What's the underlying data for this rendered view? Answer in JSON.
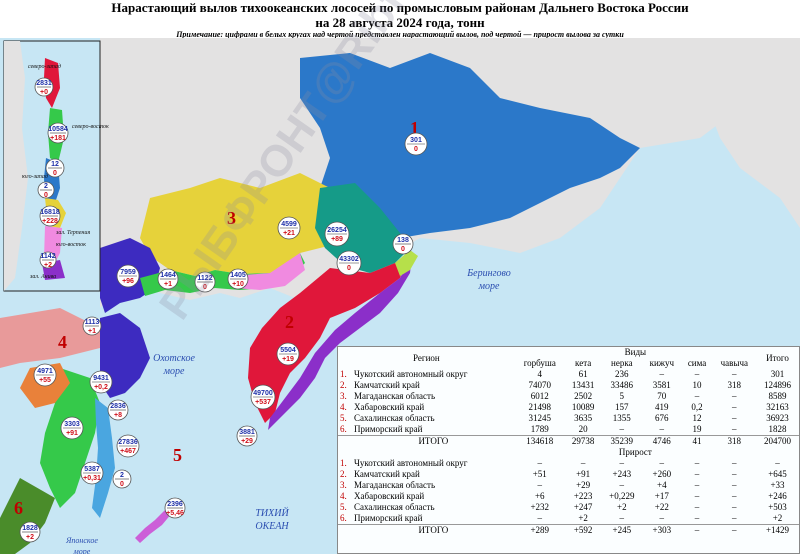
{
  "header": {
    "title_line1": "Нарастающий вылов тихоокеанских лососей по промысловым районам Дальнего Востока России",
    "title_line2": "на 28 августа 2024 года, тонн",
    "note": "Примечание: цифрами в белых кругах над чертой представлен нарастающий вылов, под чертой — прирост вылова за сутки"
  },
  "watermark": "РЫБФРОНТ@Ribfront",
  "colors": {
    "sea": "#c7e6f4",
    "land_gray": "#e3e2e2",
    "chukotka": "#2b78c9",
    "kamchatka": "#e0173a",
    "magadan": "#e6d23a",
    "khabarovsk": "#3d2bc0",
    "sakhalin": "#4aa6e0",
    "primorye": "#4a8c2a",
    "kuril": "#cc5fd8",
    "region_num": "#c00000"
  },
  "map": {
    "region_numbers": [
      "1",
      "2",
      "3",
      "4",
      "5",
      "6"
    ],
    "sea_labels": {
      "bering": [
        "Берингово",
        "море"
      ],
      "okhotsk": [
        "Охотское",
        "море"
      ],
      "pacific": [
        "ТИХИЙ",
        "ОКЕАН"
      ],
      "japan": [
        "Японское",
        "море"
      ]
    },
    "main_circles": [
      {
        "top": "301",
        "bottom": "0"
      },
      {
        "top": "4599",
        "bottom": "+21"
      },
      {
        "top": "26254",
        "bottom": "+89"
      },
      {
        "top": "43302",
        "bottom": "0"
      },
      {
        "top": "138",
        "bottom": "0"
      },
      {
        "top": "7959",
        "bottom": "+96"
      },
      {
        "top": "1464",
        "bottom": "+1"
      },
      {
        "top": "1122",
        "bottom": "0"
      },
      {
        "top": "1405",
        "bottom": "+10"
      },
      {
        "top": "1113",
        "bottom": "+1"
      },
      {
        "top": "5504",
        "bottom": "+19"
      },
      {
        "top": "49700",
        "bottom": "+537"
      },
      {
        "top": "3881",
        "bottom": "+29"
      },
      {
        "top": "4971",
        "bottom": "+55"
      },
      {
        "top": "9431",
        "bottom": "+0,2"
      },
      {
        "top": "3303",
        "bottom": "+91"
      },
      {
        "top": "2836",
        "bottom": "+8"
      },
      {
        "top": "27836",
        "bottom": "+467"
      },
      {
        "top": "5387",
        "bottom": "+0,31"
      },
      {
        "top": "2",
        "bottom": "0"
      },
      {
        "top": "2396",
        "bottom": "+5,46"
      },
      {
        "top": "1828",
        "bottom": "+2"
      }
    ],
    "inset": {
      "labels": [
        "северо-запад",
        "северо-восток",
        "юго-запад",
        "зал. Терпения",
        "юго-восток",
        "зал. Анива"
      ],
      "circles": [
        {
          "top": "2831",
          "bottom": "+0"
        },
        {
          "top": "10584",
          "bottom": "+181"
        },
        {
          "top": "12",
          "bottom": "0"
        },
        {
          "top": "2",
          "bottom": "0"
        },
        {
          "top": "16818",
          "bottom": "+228"
        },
        {
          "top": "1142",
          "bottom": "+2"
        }
      ]
    }
  },
  "table": {
    "headers": {
      "region": "Регион",
      "species": "Виды",
      "total": "Итого",
      "growth": "Прирост"
    },
    "species": [
      "горбуша",
      "кета",
      "нерка",
      "кижуч",
      "сима",
      "чавыча"
    ],
    "catch_rows": [
      {
        "num": "1.",
        "region": "Чукотский автономный округ",
        "values": [
          "4",
          "61",
          "236",
          "–",
          "–",
          "–"
        ],
        "total": "301"
      },
      {
        "num": "2.",
        "region": "Камчатский край",
        "values": [
          "74070",
          "13431",
          "33486",
          "3581",
          "10",
          "318"
        ],
        "total": "124896"
      },
      {
        "num": "3.",
        "region": "Магаданская область",
        "values": [
          "6012",
          "2502",
          "5",
          "70",
          "–",
          "–"
        ],
        "total": "8589"
      },
      {
        "num": "4.",
        "region": "Хабаровский край",
        "values": [
          "21498",
          "10089",
          "157",
          "419",
          "0,2",
          "–"
        ],
        "total": "32163"
      },
      {
        "num": "5.",
        "region": "Сахалинская область",
        "values": [
          "31245",
          "3635",
          "1355",
          "676",
          "12",
          "–"
        ],
        "total": "36923"
      },
      {
        "num": "6.",
        "region": "Приморский край",
        "values": [
          "1789",
          "20",
          "–",
          "–",
          "19",
          "–"
        ],
        "total": "1828"
      }
    ],
    "catch_total": {
      "label": "ИТОГО",
      "values": [
        "134618",
        "29738",
        "35239",
        "4746",
        "41",
        "318"
      ],
      "total": "204700"
    },
    "growth_rows": [
      {
        "num": "1.",
        "region": "Чукотский автономный округ",
        "values": [
          "–",
          "–",
          "–",
          "–",
          "–",
          "–"
        ],
        "total": "–"
      },
      {
        "num": "2.",
        "region": "Камчатский край",
        "values": [
          "+51",
          "+91",
          "+243",
          "+260",
          "–",
          "–"
        ],
        "total": "+645"
      },
      {
        "num": "3.",
        "region": "Магаданская область",
        "values": [
          "–",
          "+29",
          "–",
          "+4",
          "–",
          "–"
        ],
        "total": "+33"
      },
      {
        "num": "4.",
        "region": "Хабаровский край",
        "values": [
          "+6",
          "+223",
          "+0,229",
          "+17",
          "–",
          "–"
        ],
        "total": "+246"
      },
      {
        "num": "5.",
        "region": "Сахалинская область",
        "values": [
          "+232",
          "+247",
          "+2",
          "+22",
          "–",
          "–"
        ],
        "total": "+503"
      },
      {
        "num": "6.",
        "region": "Приморский край",
        "values": [
          "–",
          "+2",
          "–",
          "–",
          "–",
          "–"
        ],
        "total": "+2"
      }
    ],
    "growth_total": {
      "label": "ИТОГО",
      "values": [
        "+289",
        "+592",
        "+245",
        "+303",
        "–",
        "–"
      ],
      "total": "+1429"
    }
  }
}
